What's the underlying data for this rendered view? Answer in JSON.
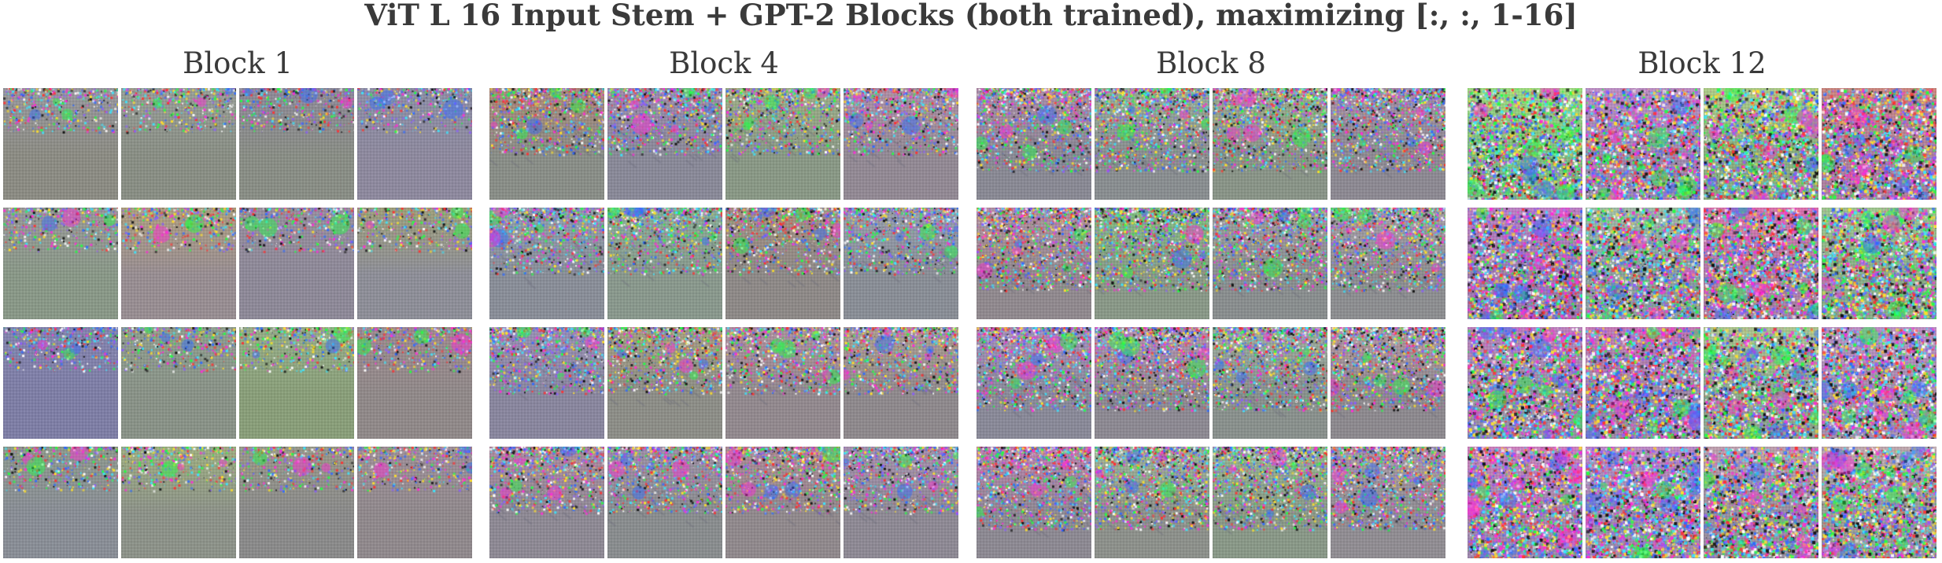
{
  "title": "ViT L 16 Input Stem + GPT-2 Blocks (both trained), maximizing [:, :, 1-16]",
  "blocks": [
    {
      "label": "Block 1",
      "tiles": [
        {
          "base": "#8d8d84",
          "tint": "#9a9aa0"
        },
        {
          "base": "#8a9085",
          "tint": "#9aa09a"
        },
        {
          "base": "#8a8f86",
          "tint": "#8f8a9a"
        },
        {
          "base": "#8f8aa0",
          "tint": "#8e90a8"
        },
        {
          "base": "#8a9a88",
          "tint": "#9a9a9a"
        },
        {
          "base": "#9a8f94",
          "tint": "#b0a080"
        },
        {
          "base": "#8f8a9a",
          "tint": "#9a8fa0"
        },
        {
          "base": "#8f909a",
          "tint": "#a0a07a"
        },
        {
          "base": "#7f7fa8",
          "tint": "#8484b2"
        },
        {
          "base": "#8a9488",
          "tint": "#90a090"
        },
        {
          "base": "#8aa07a",
          "tint": "#98b088"
        },
        {
          "base": "#928a8a",
          "tint": "#a08a90"
        },
        {
          "base": "#8a8f98",
          "tint": "#8e9a8e"
        },
        {
          "base": "#8e948a",
          "tint": "#9fb080"
        },
        {
          "base": "#8b8b8b",
          "tint": "#9a9a8a"
        },
        {
          "base": "#928a8e",
          "tint": "#a0909a"
        }
      ]
    },
    {
      "label": "Block 4",
      "tiles": [
        {
          "base": "#8a8f88",
          "tint": "#b08878"
        },
        {
          "base": "#8a8a9a",
          "tint": "#a08ab0"
        },
        {
          "base": "#8a9a86",
          "tint": "#a0b088"
        },
        {
          "base": "#948a96",
          "tint": "#b090a8"
        },
        {
          "base": "#8a8f9a",
          "tint": "#90a0b0"
        },
        {
          "base": "#8a9a8e",
          "tint": "#88b098"
        },
        {
          "base": "#8f8a88",
          "tint": "#a89080"
        },
        {
          "base": "#8a8f98",
          "tint": "#98a0b0"
        },
        {
          "base": "#8a87a0",
          "tint": "#9a90b8"
        },
        {
          "base": "#8e8f88",
          "tint": "#a8a080"
        },
        {
          "base": "#948a90",
          "tint": "#b090a0"
        },
        {
          "base": "#908a8e",
          "tint": "#b0a090"
        },
        {
          "base": "#8f8a96",
          "tint": "#b08aa0"
        },
        {
          "base": "#8a8e90",
          "tint": "#a090a8"
        },
        {
          "base": "#928a8e",
          "tint": "#b08a98"
        },
        {
          "base": "#8f8a96",
          "tint": "#a890b0"
        }
      ]
    },
    {
      "label": "Block 8",
      "tiles": [
        {
          "base": "#8a8a96",
          "tint": "#b08aa8"
        },
        {
          "base": "#8a8f92",
          "tint": "#9ab098"
        },
        {
          "base": "#8a9688",
          "tint": "#a0b090"
        },
        {
          "base": "#8e8a94",
          "tint": "#a890a8"
        },
        {
          "base": "#928a90",
          "tint": "#b890a0"
        },
        {
          "base": "#8a9a88",
          "tint": "#80c080"
        },
        {
          "base": "#8a8f90",
          "tint": "#a0a0a0"
        },
        {
          "base": "#8e8f92",
          "tint": "#a8a0a8"
        },
        {
          "base": "#8a8a9a",
          "tint": "#a890c0"
        },
        {
          "base": "#8e8a94",
          "tint": "#b890b0"
        },
        {
          "base": "#8a928e",
          "tint": "#a0b0a0"
        },
        {
          "base": "#8e8a90",
          "tint": "#b898a0"
        },
        {
          "base": "#8e8a94",
          "tint": "#c080b0"
        },
        {
          "base": "#8e928c",
          "tint": "#a0b898"
        },
        {
          "base": "#8a9a88",
          "tint": "#98b890"
        },
        {
          "base": "#928e94",
          "tint": "#a89aa8"
        }
      ]
    },
    {
      "label": "Block 12",
      "tiles": [
        {
          "base": "#80c080",
          "tint": "#a0e080"
        },
        {
          "base": "#a08ab0",
          "tint": "#c090c8"
        },
        {
          "base": "#8ab080",
          "tint": "#b0d088"
        },
        {
          "base": "#b080a0",
          "tint": "#d08880"
        },
        {
          "base": "#a07ab0",
          "tint": "#c080c8"
        },
        {
          "base": "#8aa0a0",
          "tint": "#a0c0a8"
        },
        {
          "base": "#b080a8",
          "tint": "#e070b0"
        },
        {
          "base": "#8ab088",
          "tint": "#a0c890"
        },
        {
          "base": "#9a90a8",
          "tint": "#c080c0"
        },
        {
          "base": "#a088a8",
          "tint": "#c878b8"
        },
        {
          "base": "#90a890",
          "tint": "#b0c890"
        },
        {
          "base": "#a890b0",
          "tint": "#c090c8"
        },
        {
          "base": "#a088b0",
          "tint": "#d080c0"
        },
        {
          "base": "#a090b0",
          "tint": "#c088c8"
        },
        {
          "base": "#9a90a0",
          "tint": "#c0a0b0"
        },
        {
          "base": "#9aa098",
          "tint": "#c0a8b0"
        }
      ]
    }
  ]
}
